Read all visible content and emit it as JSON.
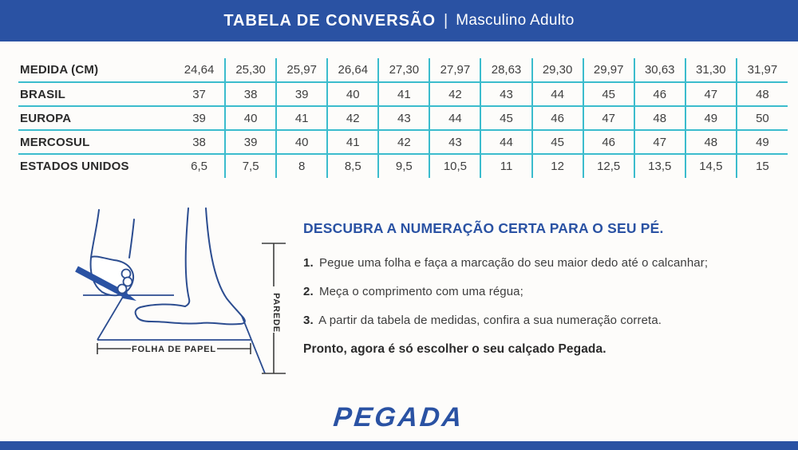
{
  "colors": {
    "accent_blue": "#2a52a3",
    "table_border_teal": "#3bbccd",
    "illustration_navy": "#2c4d90",
    "text_dark": "#3d3d3d"
  },
  "header": {
    "title": "TABELA DE CONVERSÃO",
    "separator": "|",
    "subtitle": "Masculino Adulto"
  },
  "table": {
    "rows": [
      {
        "label": "MEDIDA (CM)",
        "values": [
          "24,64",
          "25,30",
          "25,97",
          "26,64",
          "27,30",
          "27,97",
          "28,63",
          "29,30",
          "29,97",
          "30,63",
          "31,30",
          "31,97"
        ]
      },
      {
        "label": "BRASIL",
        "values": [
          "37",
          "38",
          "39",
          "40",
          "41",
          "42",
          "43",
          "44",
          "45",
          "46",
          "47",
          "48"
        ]
      },
      {
        "label": "EUROPA",
        "values": [
          "39",
          "40",
          "41",
          "42",
          "43",
          "44",
          "45",
          "46",
          "47",
          "48",
          "49",
          "50"
        ]
      },
      {
        "label": "MERCOSUL",
        "values": [
          "38",
          "39",
          "40",
          "41",
          "42",
          "43",
          "44",
          "45",
          "46",
          "47",
          "48",
          "49"
        ]
      },
      {
        "label": "ESTADOS UNIDOS",
        "values": [
          "6,5",
          "7,5",
          "8",
          "8,5",
          "9,5",
          "10,5",
          "11",
          "12",
          "12,5",
          "13,5",
          "14,5",
          "15"
        ]
      }
    ]
  },
  "illustration": {
    "wall_label": "PAREDE",
    "paper_label": "FOLHA DE PAPEL"
  },
  "instructions": {
    "heading": "DESCUBRA A NUMERAÇÃO CERTA PARA O SEU PÉ.",
    "steps": [
      {
        "num": "1.",
        "text": "Pegue uma folha e faça a marcação do seu maior dedo até o calcanhar;"
      },
      {
        "num": "2.",
        "text": "Meça o comprimento com uma régua;"
      },
      {
        "num": "3.",
        "text": "A partir da tabela de medidas, confira a sua numeração correta."
      }
    ],
    "closing": "Pronto, agora é só escolher o seu calçado Pegada."
  },
  "logo": {
    "text": "PEGADA"
  }
}
